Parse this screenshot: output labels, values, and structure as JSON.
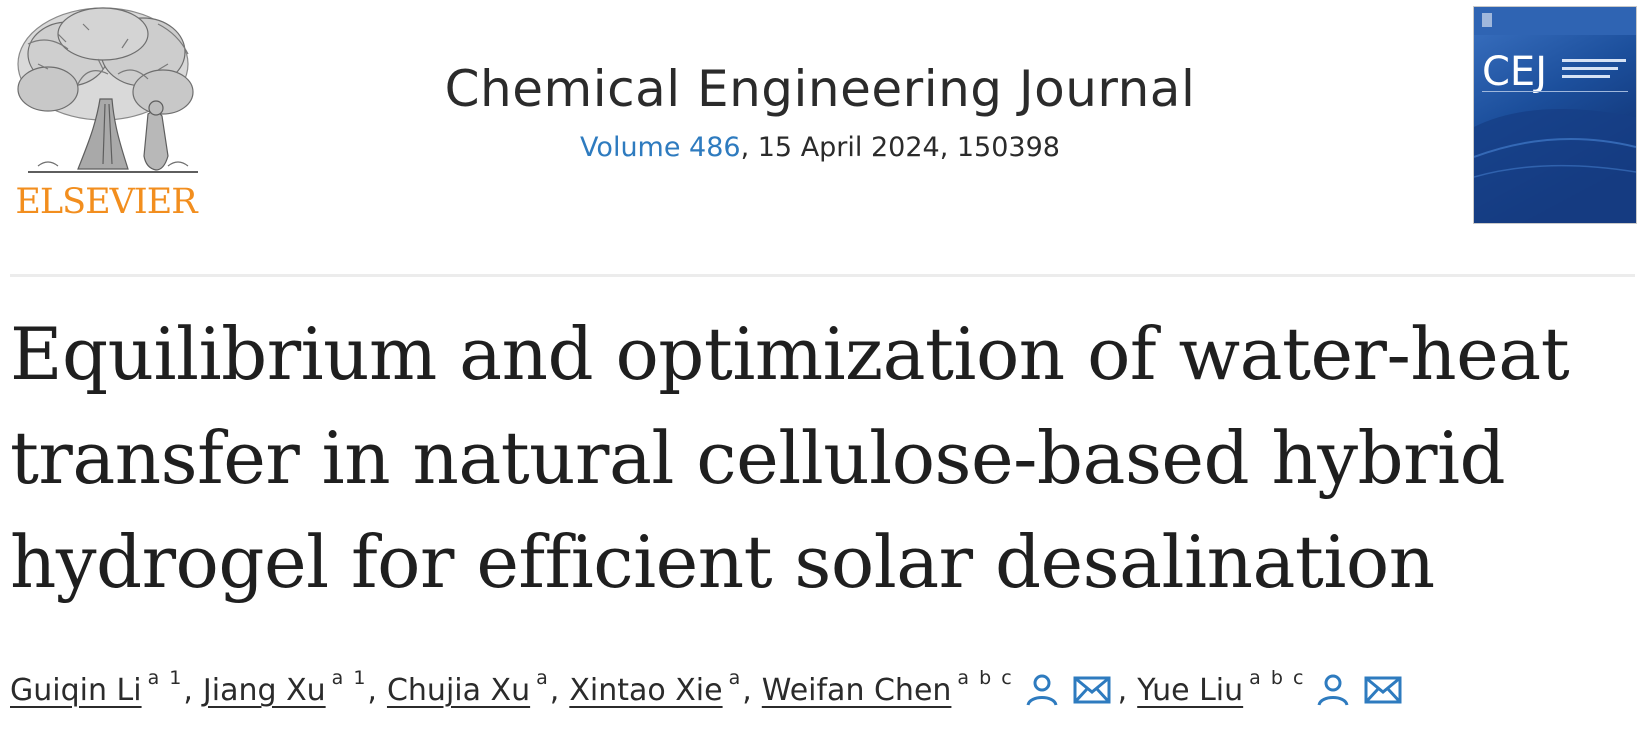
{
  "publisher": {
    "name": "ELSEVIER",
    "logo_icon": "elsevier-tree-icon",
    "brand_color": "#f28e1e"
  },
  "journal": {
    "title": "Chemical Engineering Journal",
    "volume_label": "Volume 486",
    "issue_rest": ", 15 April 2024, 150398",
    "link_color": "#2e7bbf"
  },
  "cover": {
    "abbrev": "CEJ",
    "color": "#1d4f9a"
  },
  "article": {
    "title": "Equilibrium and optimization of water-heat transfer in natural cellulose-based hybrid hydrogel for efficient solar desalination"
  },
  "authors": [
    {
      "name": "Guiqin Li",
      "aff": "a 1",
      "sep": ","
    },
    {
      "name": "Jiang Xu",
      "aff": "a 1",
      "sep": ","
    },
    {
      "name": "Chujia Xu",
      "aff": "a",
      "sep": ","
    },
    {
      "name": "Xintao Xie",
      "aff": "a",
      "sep": ","
    },
    {
      "name": "Weifan Chen",
      "aff": "a b c",
      "sep": ","
    },
    {
      "name": "Yue Liu",
      "aff": "a b c",
      "sep": ""
    }
  ],
  "icons": {
    "person": "person-icon",
    "email": "email-icon"
  }
}
